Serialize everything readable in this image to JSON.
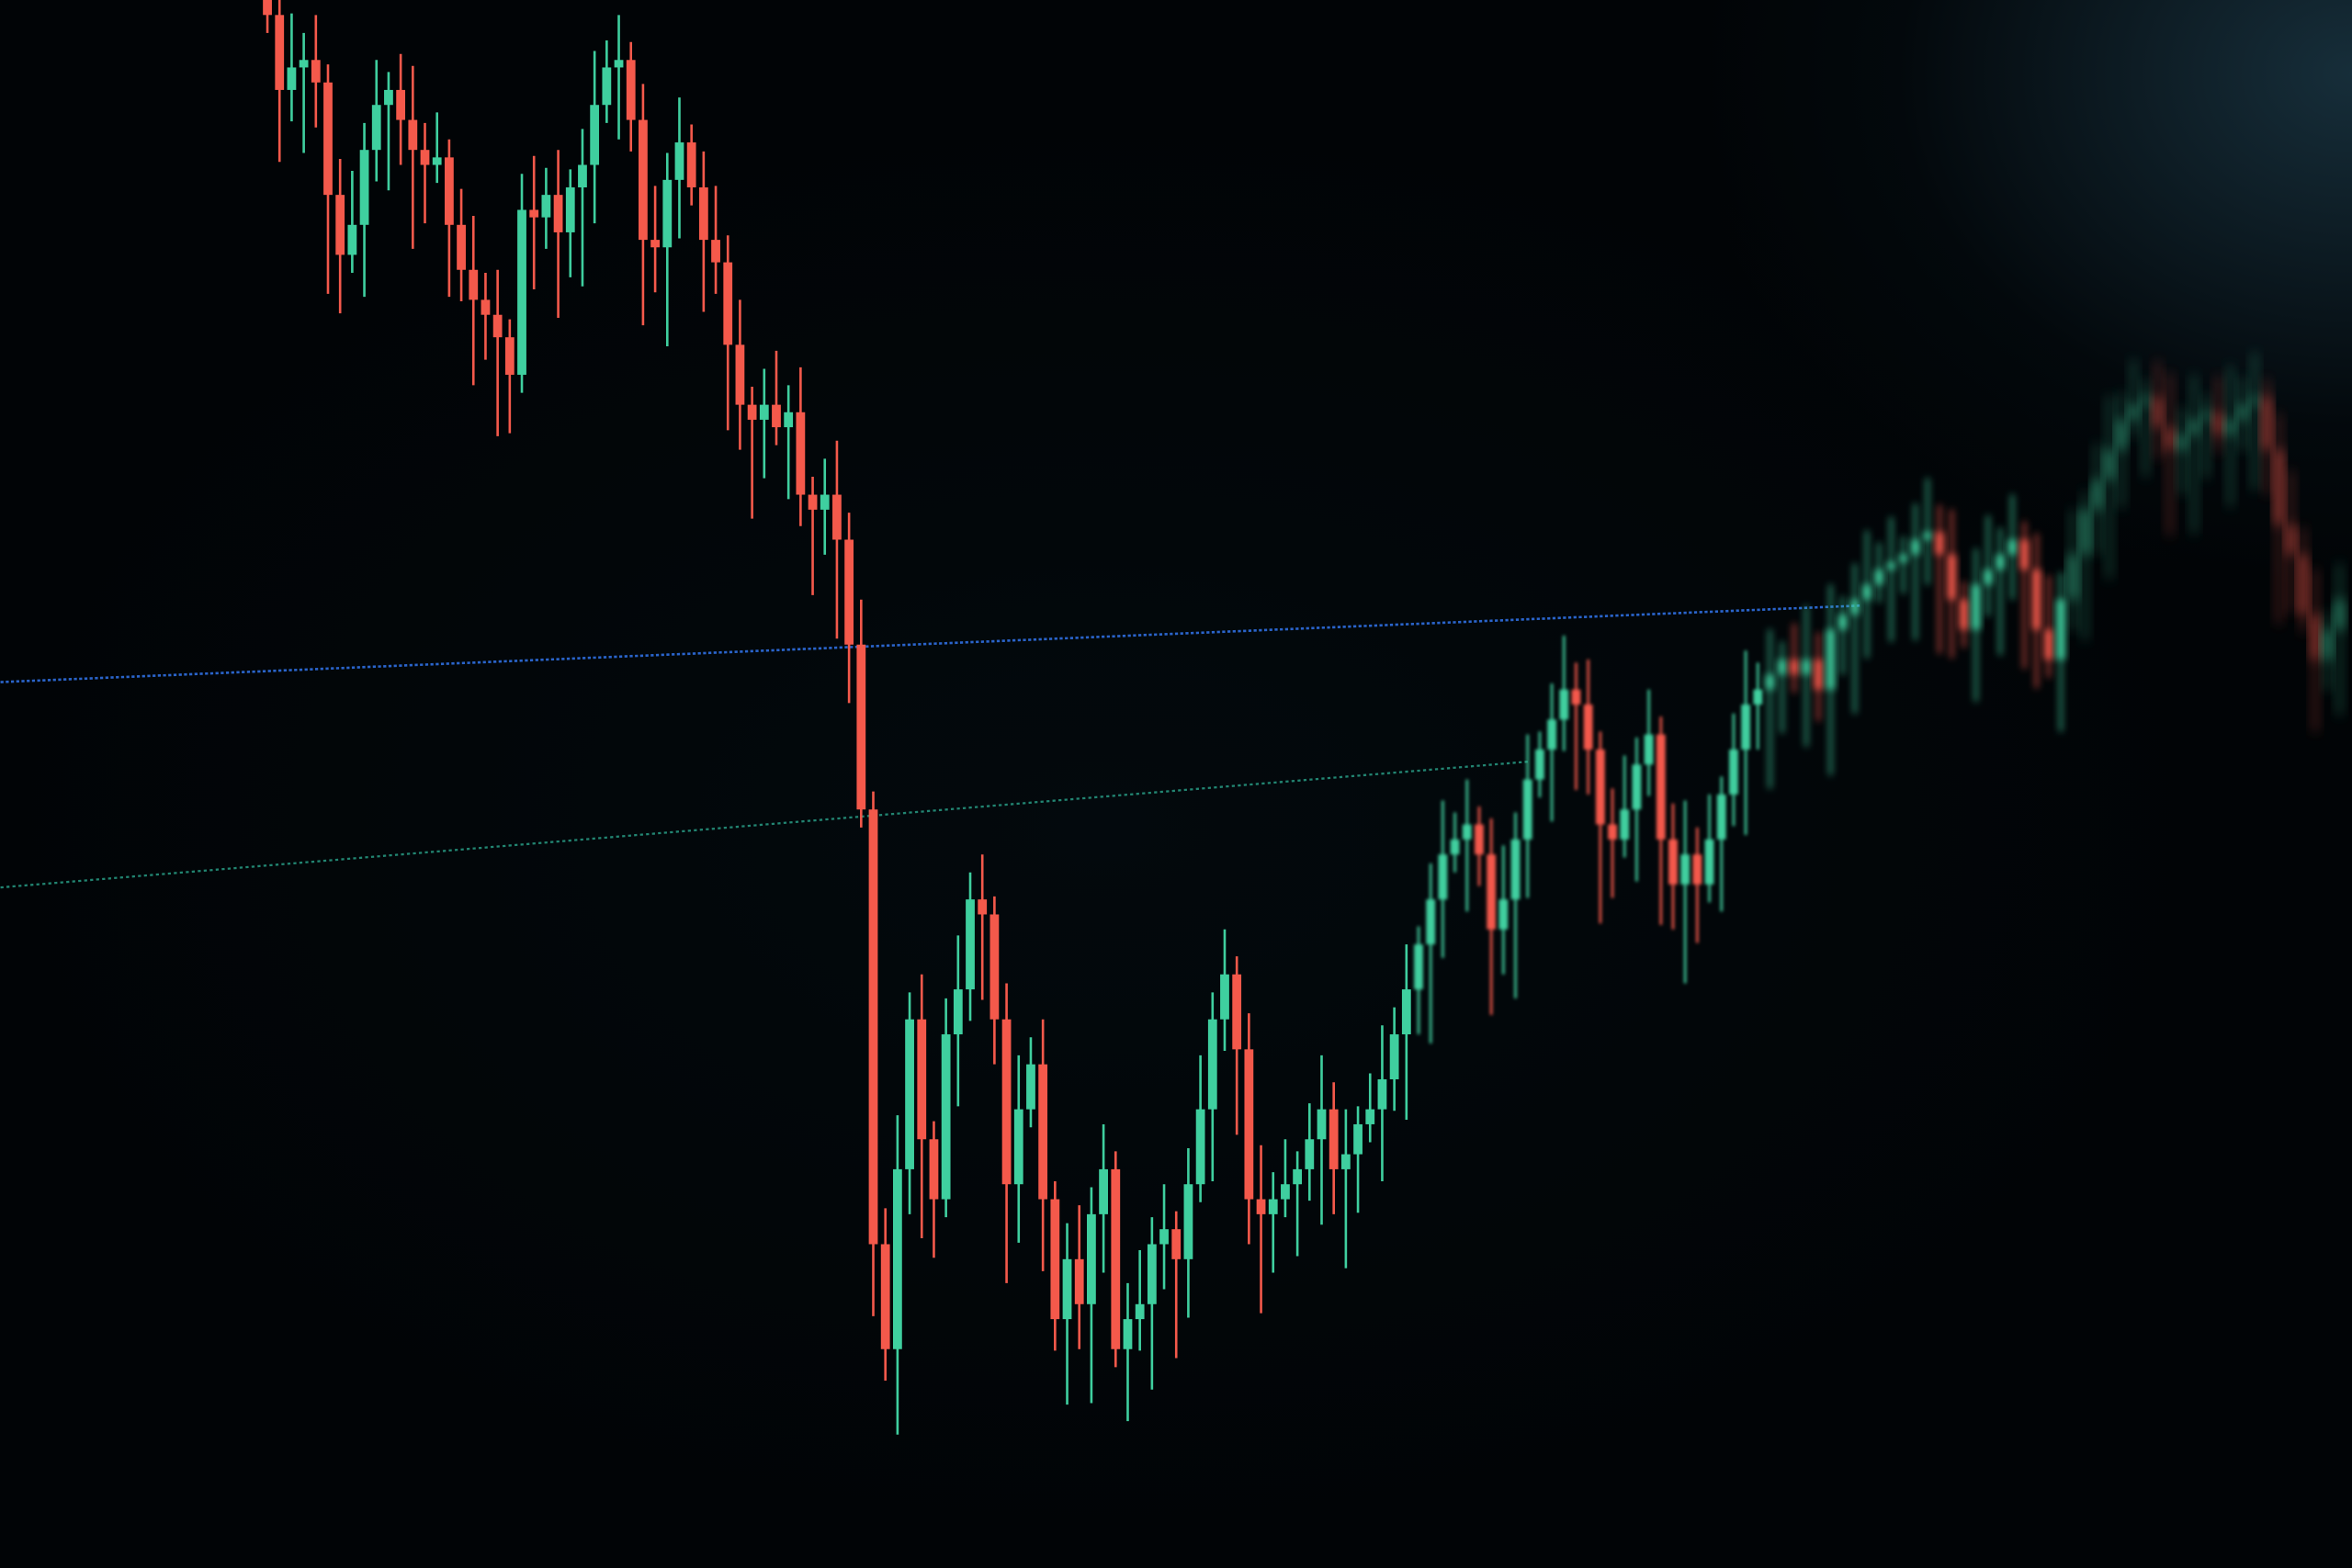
{
  "chart_data": {
    "type": "candlestick",
    "title": "",
    "xlabel": "",
    "ylabel": "",
    "ylim": [
      0,
      104.6
    ],
    "grid": false,
    "legend": "none",
    "colors": {
      "up": "#3fcf9f",
      "down": "#f4594b",
      "background": "#02070b",
      "level_line_1": "#2f6fe0",
      "level_line_2": "#2aa58c"
    },
    "closes": [
      103.6,
      98.6,
      100.1,
      100.6,
      99.1,
      91.6,
      87.6,
      89.6,
      94.6,
      97.6,
      98.6,
      96.6,
      94.6,
      93.6,
      94.1,
      89.6,
      86.6,
      84.6,
      83.6,
      82.1,
      79.6,
      90.6,
      90.1,
      91.6,
      89.1,
      92.1,
      93.6,
      97.6,
      100.1,
      100.6,
      96.6,
      88.6,
      88.1,
      92.6,
      95.1,
      92.1,
      88.6,
      87.1,
      81.6,
      77.6,
      76.6,
      77.6,
      76.1,
      77.1,
      71.6,
      70.6,
      71.6,
      68.6,
      61.6,
      50.6,
      21.6,
      14.6,
      26.6,
      36.6,
      28.6,
      24.6,
      35.6,
      38.6,
      44.6,
      43.6,
      36.6,
      25.6,
      30.6,
      33.6,
      24.6,
      16.6,
      20.6,
      17.6,
      23.6,
      26.6,
      14.6,
      16.6,
      17.6,
      21.6,
      22.6,
      20.6,
      25.6,
      30.6,
      36.6,
      39.6,
      34.6,
      24.6,
      23.6,
      24.6,
      25.6,
      26.6,
      28.6,
      30.6,
      26.6,
      27.6,
      29.6,
      30.6,
      32.6,
      35.6,
      38.6,
      41.6,
      44.6,
      47.6,
      48.6,
      49.6,
      47.6,
      42.6,
      44.6,
      48.6,
      52.6,
      54.6,
      56.6,
      58.6,
      57.6,
      54.6,
      49.6,
      48.6,
      50.6,
      53.6,
      55.6,
      48.6,
      45.6,
      47.6,
      45.6,
      48.6,
      51.6,
      54.6,
      57.6,
      58.6,
      59.6,
      60.6,
      59.6,
      60.6,
      58.6,
      62.6,
      63.6,
      64.6,
      65.6,
      66.6,
      67.1,
      67.6,
      68.6,
      69.1,
      67.6,
      64.6,
      62.6,
      65.6,
      66.6,
      67.6,
      68.6,
      66.6,
      62.6,
      60.6,
      64.6,
      67.6,
      70.6,
      72.6,
      74.6,
      76.6,
      77.6,
      78.1,
      76.1,
      74.6,
      75.6,
      76.6,
      77.1,
      75.6,
      76.6,
      77.6,
      78.1,
      74.6,
      69.6,
      67.6,
      63.6,
      60.6,
      62.6,
      64.6
    ]
  }
}
